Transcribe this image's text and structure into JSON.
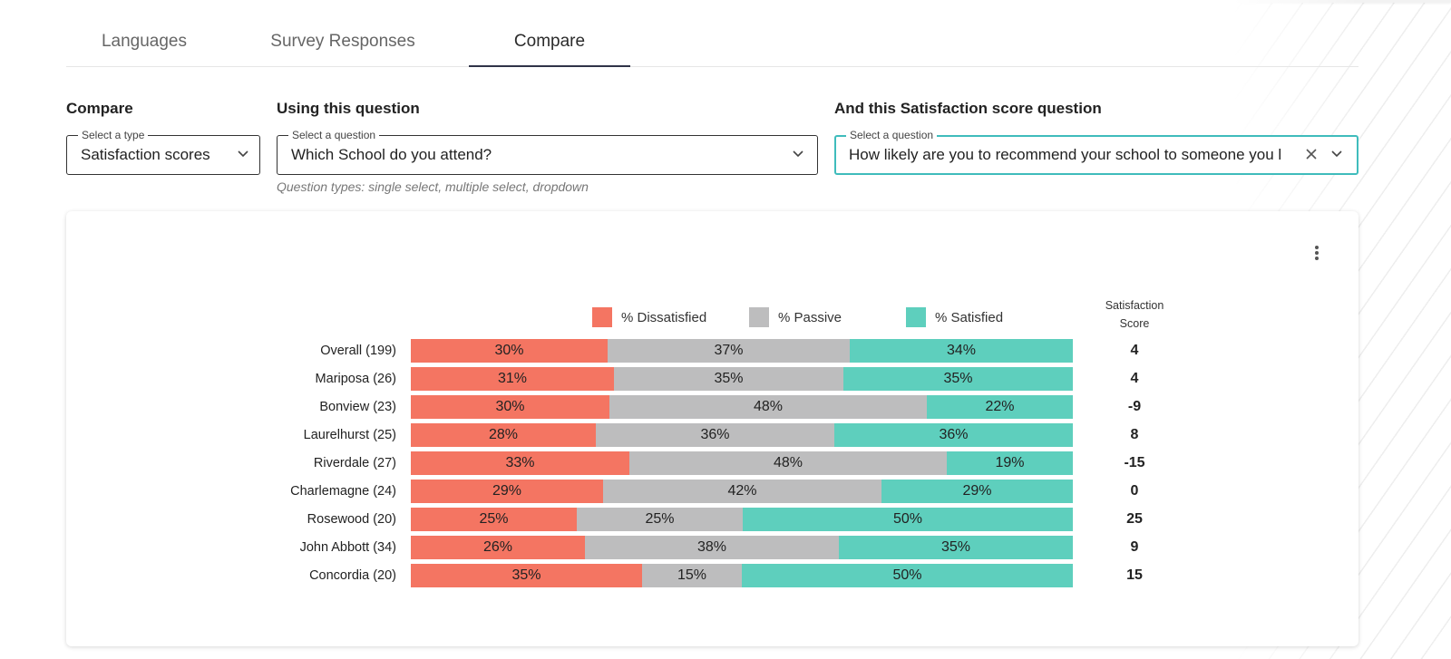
{
  "tabs": [
    {
      "label": "Languages"
    },
    {
      "label": "Survey Responses"
    },
    {
      "label": "Compare",
      "active": true
    }
  ],
  "compare": {
    "label": "Compare",
    "type_select": {
      "legend": "Select a type",
      "value": "Satisfaction scores"
    }
  },
  "using": {
    "label": "Using this question",
    "select": {
      "legend": "Select a question",
      "value": "Which School do you attend?"
    },
    "hint": "Question types: single select, multiple select, dropdown"
  },
  "satisfaction": {
    "label": "And this Satisfaction score question",
    "select": {
      "legend": "Select a question",
      "value": "How likely are you to recommend your school to someone you l"
    }
  },
  "icons": {
    "chevron": "chevron-down-icon",
    "clear": "close-icon",
    "menu": "more-vertical-icon"
  },
  "colors": {
    "dissatisfied": "#f47562",
    "passive": "#bdbdbe",
    "satisfied": "#5ecfbd",
    "focus": "#3fbcbc"
  },
  "chart_data": {
    "type": "bar",
    "stacked": true,
    "orientation": "horizontal",
    "legend_position": "top",
    "categories": [
      "Overall (199)",
      "Mariposa (26)",
      "Bonview (23)",
      "Laurelhurst (25)",
      "Riverdale (27)",
      "Charlemagne (24)",
      "Rosewood (20)",
      "John Abbott (34)",
      "Concordia (20)"
    ],
    "series": [
      {
        "name": "% Dissatisfied",
        "values": [
          30,
          31,
          30,
          28,
          33,
          29,
          25,
          26,
          35
        ],
        "labels": [
          "30%",
          "31%",
          "30%",
          "28%",
          "33%",
          "29%",
          "25%",
          "26%",
          "35%"
        ]
      },
      {
        "name": "% Passive",
        "values": [
          37,
          35,
          48,
          36,
          48,
          42,
          25,
          38,
          15
        ],
        "labels": [
          "37%",
          "35%",
          "48%",
          "36%",
          "48%",
          "42%",
          "25%",
          "38%",
          "15%"
        ]
      },
      {
        "name": "% Satisfied",
        "values": [
          34,
          35,
          22,
          36,
          19,
          29,
          50,
          35,
          50
        ],
        "labels": [
          "34%",
          "35%",
          "22%",
          "36%",
          "19%",
          "29%",
          "50%",
          "35%",
          "50%"
        ]
      }
    ],
    "score_header": [
      "Satisfaction",
      "Score"
    ],
    "scores": [
      "4",
      "4",
      "-9",
      "8",
      "-15",
      "0",
      "25",
      "9",
      "15"
    ]
  }
}
